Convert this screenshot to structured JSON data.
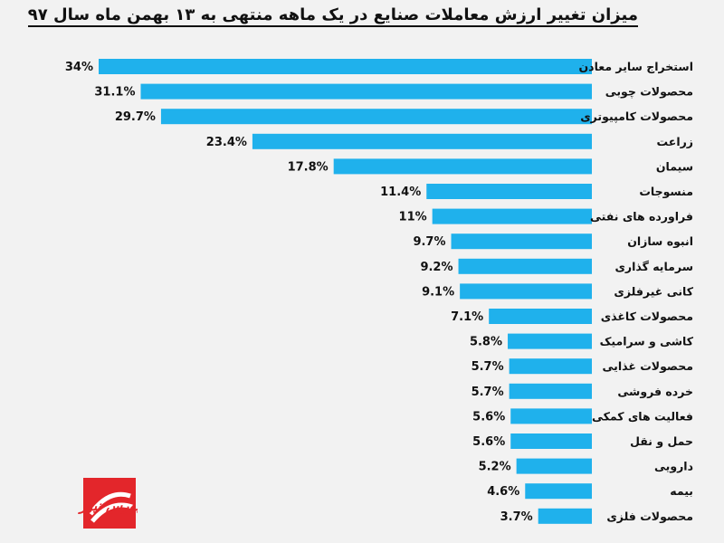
{
  "title": "میزان تغییر ارزش معاملات صنایع در یک ماهه منتهی به ۱۳ بهمن ماه سال ۹۷",
  "logo": {
    "text": "بورس نیوز",
    "icon": "bourse-news-logo",
    "color": "#e3262b"
  },
  "colors": {
    "bar": "#1fb1ec",
    "background": "#f2f2f2"
  },
  "chart_data": {
    "type": "bar",
    "orientation": "horizontal",
    "title": "میزان تغییر ارزش معاملات صنایع در یک ماهه منتهی به ۱۳ بهمن ماه سال ۹۷",
    "categories": [
      "استخراج سایر معادن",
      "محصولات چوبی",
      "محصولات کامپیوتری",
      "زراعت",
      "سیمان",
      "منسوجات",
      "فراورده های نفتی",
      "انبوه سازان",
      "سرمایه گذاری",
      "کانی غیرفلزی",
      "محصولات کاغذی",
      "کاشی و سرامیک",
      "محصولات غذایی",
      "خرده فروشی",
      "فعالیت های کمکی",
      "حمل و نقل",
      "دارویی",
      "بیمه",
      "محصولات فلزی"
    ],
    "values": [
      34,
      31.1,
      29.7,
      23.4,
      17.8,
      11.4,
      11,
      9.7,
      9.2,
      9.1,
      7.1,
      5.8,
      5.7,
      5.7,
      5.6,
      5.6,
      5.2,
      4.6,
      3.7
    ],
    "labels": [
      "34%",
      "31.1%",
      "29.7%",
      "23.4%",
      "17.8%",
      "11.4%",
      "11%",
      "9.7%",
      "9.2%",
      "9.1%",
      "7.1%",
      "5.8%",
      "5.7%",
      "5.7%",
      "5.6%",
      "5.6%",
      "5.2%",
      "4.6%",
      "3.7%"
    ],
    "xlabel": "",
    "ylabel": "",
    "grid": false,
    "legend": "none"
  }
}
